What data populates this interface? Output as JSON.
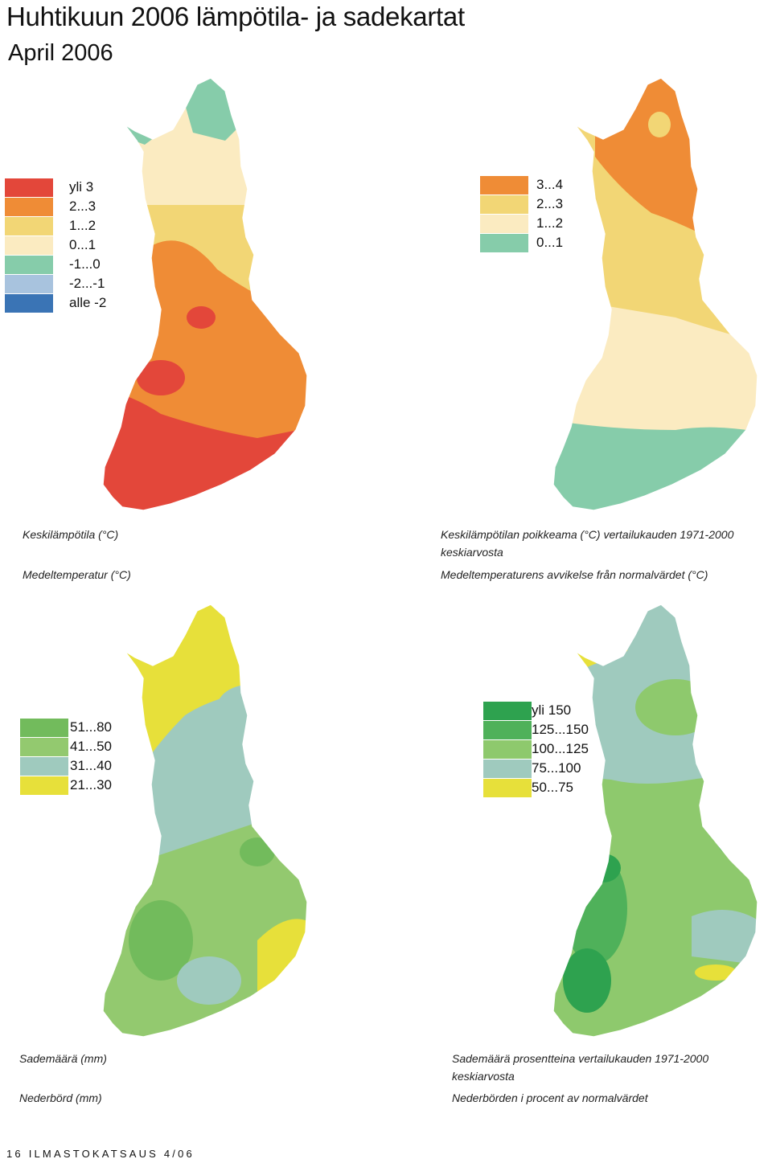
{
  "header": {
    "title": "Huhtikuun 2006 lämpötila- ja sadekartat",
    "subtitle": "April 2006"
  },
  "maps": [
    {
      "caption_fi": "Keskilämpötila (°C)",
      "caption_sv": "Medeltemperatur (°C)",
      "legend": [
        {
          "label": "yli 3",
          "color": "#e3473a"
        },
        {
          "label": "2...3",
          "color": "#ef8c36"
        },
        {
          "label": "1...2",
          "color": "#f2d675"
        },
        {
          "label": "0...1",
          "color": "#fbebc1"
        },
        {
          "label": "-1...0",
          "color": "#86ccaa"
        },
        {
          "label": "-2...-1",
          "color": "#a8c3de"
        },
        {
          "label": "alle -2",
          "color": "#3a74b5"
        }
      ]
    },
    {
      "caption_fi": "Keskilämpötilan poikkeama (°C) vertailukauden 1971-2000",
      "caption_fi2": "keskiarvosta",
      "caption_sv": "Medeltemperaturens avvikelse från normalvärdet (°C)",
      "legend": [
        {
          "label": "3...4",
          "color": "#ef8c36"
        },
        {
          "label": "2...3",
          "color": "#f2d675"
        },
        {
          "label": "1...2",
          "color": "#fbebc1"
        },
        {
          "label": "0...1",
          "color": "#86ccaa"
        }
      ]
    },
    {
      "caption_fi": "Sademäärä (mm)",
      "caption_sv": "Nederbörd (mm)",
      "legend": [
        {
          "label": "51...80",
          "color": "#72bb5c"
        },
        {
          "label": "41...50",
          "color": "#93c96f"
        },
        {
          "label": "31...40",
          "color": "#9fcabe"
        },
        {
          "label": "21...30",
          "color": "#e7e03a"
        }
      ]
    },
    {
      "caption_fi": "Sademäärä prosentteina vertailukauden 1971-2000",
      "caption_fi2": "keskiarvosta",
      "caption_sv": "Nederbörden i procent av normalvärdet",
      "legend": [
        {
          "label": "yli 150",
          "color": "#2ea24f"
        },
        {
          "label": "125...150",
          "color": "#4fb15a"
        },
        {
          "label": "100...125",
          "color": "#8ec96d"
        },
        {
          "label": "75...100",
          "color": "#9fcabe"
        },
        {
          "label": "50...75",
          "color": "#e7e03a"
        }
      ]
    }
  ],
  "footer": {
    "page": "16",
    "publication": "ILMASTOKATSAUS 4/06"
  }
}
